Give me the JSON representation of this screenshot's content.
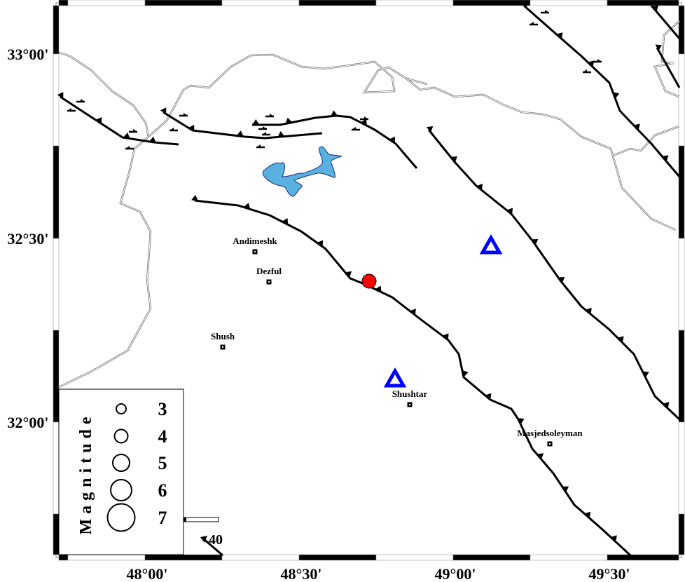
{
  "axes": {
    "latitude_labels": [
      "33°00'",
      "32°30'",
      "32°00'"
    ],
    "longitude_labels": [
      "48°00'",
      "48°30'",
      "49°00'",
      "49°30'"
    ]
  },
  "towns": [
    {
      "name": "Andimeshk"
    },
    {
      "name": "Dezful"
    },
    {
      "name": "Shush"
    },
    {
      "name": "Shushtar"
    },
    {
      "name": "Masjedsoleyman"
    }
  ],
  "legend": {
    "title": "Magnitude",
    "entries": [
      "3",
      "4",
      "5",
      "6",
      "7"
    ]
  },
  "scale_bar": {
    "label": "40"
  },
  "colors": {
    "earthquake": "#ff0000",
    "station": "#0000ff",
    "lake": "#5ab1e0",
    "fault": "#000000",
    "river": "#808080"
  },
  "symbols": {
    "earthquake": "red-circle",
    "stations": [
      "blue-triangle",
      "blue-triangle"
    ]
  }
}
